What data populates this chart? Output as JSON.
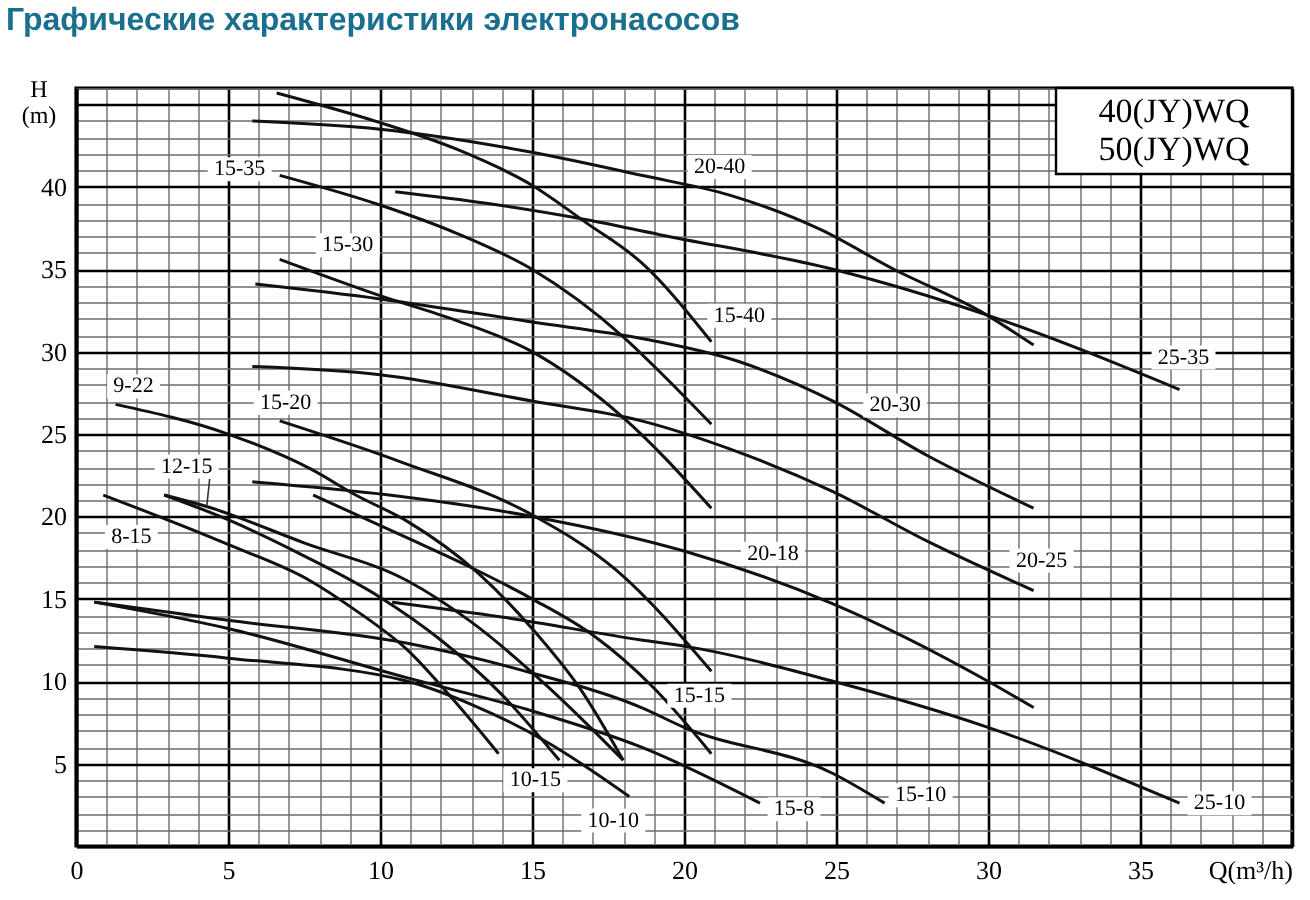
{
  "chart_data": {
    "type": "line",
    "title": "Графические характеристики электронасосов",
    "xlabel": "Q(m³/h)",
    "ylabel": "H\n(m)",
    "annotations": [
      "40(JY)WQ",
      "50(JY)WQ"
    ],
    "xlim": [
      0,
      40
    ],
    "ylim": [
      0,
      46
    ],
    "xticks": [
      0,
      {
        "value": 1,
        "label": null
      },
      {
        "value": 2,
        "label": null
      },
      {
        "value": 3,
        "label": null
      },
      {
        "value": 4,
        "label": null
      },
      5,
      {
        "value": 6,
        "label": null
      },
      {
        "value": 7,
        "label": null
      },
      {
        "value": 8,
        "label": null
      },
      {
        "value": 9,
        "label": null
      },
      10,
      {
        "value": 11,
        "label": null
      },
      {
        "value": 12,
        "label": null
      },
      {
        "value": 13,
        "label": null
      },
      {
        "value": 14,
        "label": null
      },
      15,
      {
        "value": 16,
        "label": null
      },
      {
        "value": 17,
        "label": null
      },
      {
        "value": 18,
        "label": null
      },
      {
        "value": 19,
        "label": null
      },
      20,
      {
        "value": 21,
        "label": null
      },
      {
        "value": 22,
        "label": null
      },
      {
        "value": 23,
        "label": null
      },
      {
        "value": 24,
        "label": null
      },
      25,
      {
        "value": 26,
        "label": null
      },
      {
        "value": 27,
        "label": null
      },
      {
        "value": 28,
        "label": null
      },
      {
        "value": 29,
        "label": null
      },
      30,
      {
        "value": 31,
        "label": null
      },
      {
        "value": 32,
        "label": null
      },
      {
        "value": 33,
        "label": null
      },
      {
        "value": 34,
        "label": null
      },
      35,
      {
        "value": 36,
        "label": null
      },
      {
        "value": 37,
        "label": null
      },
      {
        "value": 38,
        "label": null
      },
      {
        "value": 39,
        "label": null
      },
      {
        "value": 40,
        "label": null
      }
    ],
    "yticks": [
      {
        "value": 0,
        "label": null
      },
      {
        "value": 1,
        "label": null
      },
      {
        "value": 2,
        "label": null
      },
      {
        "value": 3,
        "label": null
      },
      {
        "value": 4,
        "label": null
      },
      5,
      {
        "value": 6,
        "label": null
      },
      {
        "value": 7,
        "label": null
      },
      {
        "value": 8,
        "label": null
      },
      {
        "value": 9,
        "label": null
      },
      10,
      {
        "value": 11,
        "label": null
      },
      {
        "value": 12,
        "label": null
      },
      {
        "value": 13,
        "label": null
      },
      {
        "value": 14,
        "label": null
      },
      15,
      {
        "value": 16,
        "label": null
      },
      {
        "value": 17,
        "label": null
      },
      {
        "value": 18,
        "label": null
      },
      {
        "value": 19,
        "label": null
      },
      20,
      {
        "value": 21,
        "label": null
      },
      {
        "value": 22,
        "label": null
      },
      {
        "value": 23,
        "label": null
      },
      {
        "value": 24,
        "label": null
      },
      25,
      {
        "value": 26,
        "label": null
      },
      {
        "value": 27,
        "label": null
      },
      {
        "value": 28,
        "label": null
      },
      {
        "value": 29,
        "label": null
      },
      30,
      {
        "value": 31,
        "label": null
      },
      {
        "value": 32,
        "label": null
      },
      {
        "value": 33,
        "label": null
      },
      {
        "value": 34,
        "label": null
      },
      35,
      {
        "value": 36,
        "label": null
      },
      {
        "value": 37,
        "label": null
      },
      {
        "value": 38,
        "label": null
      },
      {
        "value": 39,
        "label": null
      },
      40,
      {
        "value": 41,
        "label": null
      },
      {
        "value": 42,
        "label": null
      },
      {
        "value": 43,
        "label": null
      },
      {
        "value": 44,
        "label": null
      },
      {
        "value": 45,
        "label": null
      },
      {
        "value": 46,
        "label": null
      }
    ],
    "grid": true,
    "series": [
      {
        "name": "20-40",
        "color": "#111111",
        "x": [
          5.8,
          10,
          15,
          18.6,
          21.5,
          24.5,
          26.9,
          29.8,
          31.5
        ],
        "values": [
          44.0,
          43.5,
          42.1,
          40.7,
          39.5,
          37.4,
          35.0,
          32.4,
          30.4
        ]
      },
      {
        "name": "15-40",
        "color": "#111111",
        "x": [
          6.6,
          10,
          12.5,
          15,
          16.8,
          18.6,
          20.9
        ],
        "values": [
          45.7,
          43.9,
          42.3,
          40.1,
          37.8,
          35.4,
          30.6
        ]
      },
      {
        "name": "25-35",
        "color": "#111111",
        "x": [
          10.5,
          13.5,
          16.8,
          19.2,
          24.9,
          30,
          36.3
        ],
        "values": [
          39.7,
          39.0,
          38.0,
          37.1,
          35.0,
          32.2,
          27.7
        ]
      },
      {
        "name": "15-35",
        "color": "#111111",
        "x": [
          6.7,
          10,
          12.5,
          15,
          18.0,
          19.3,
          20.9
        ],
        "values": [
          40.7,
          38.9,
          37.2,
          35.0,
          30.9,
          28.6,
          25.6
        ]
      },
      {
        "name": "15-30",
        "color": "#111111",
        "x": [
          6.7,
          10,
          12.5,
          15,
          18.0,
          20.9
        ],
        "values": [
          35.6,
          33.4,
          31.9,
          30.0,
          26.0,
          20.5
        ]
      },
      {
        "name": "20-30",
        "color": "#111111",
        "x": [
          5.9,
          10,
          15,
          18.6,
          21.8,
          24.9,
          28,
          31.5
        ],
        "values": [
          34.1,
          33.2,
          31.8,
          30.8,
          29.4,
          27.0,
          23.7,
          20.5
        ]
      },
      {
        "name": "20-25",
        "color": "#111111",
        "x": [
          5.8,
          10,
          15,
          18.6,
          21.5,
          24.9,
          28,
          31.5
        ],
        "values": [
          29.1,
          28.6,
          27.0,
          25.8,
          24.1,
          21.5,
          18.5,
          15.5
        ]
      },
      {
        "name": "15-20",
        "color": "#111111",
        "x": [
          6.7,
          10.7,
          15,
          17.8,
          20.9
        ],
        "values": [
          25.8,
          23.3,
          20.1,
          16.7,
          10.6
        ]
      },
      {
        "name": "9-22",
        "color": "#111111",
        "x": [
          1.3,
          5.0,
          7.7,
          9.2,
          10.9,
          13.2,
          15,
          16.6,
          18.0
        ],
        "values": [
          26.8,
          25.0,
          22.9,
          21.3,
          19.7,
          16.6,
          13.2,
          9.5,
          5.2
        ]
      },
      {
        "name": "20-18",
        "color": "#111111",
        "x": [
          5.8,
          10.3,
          15,
          20,
          24.9,
          30,
          31.5
        ],
        "values": [
          22.1,
          21.3,
          20.0,
          17.9,
          14.7,
          10.0,
          8.4
        ]
      },
      {
        "name": "12-15",
        "color": "#111111",
        "x": [
          2.9,
          4.3,
          7.5,
          10.9,
          13,
          15.5,
          18.0
        ],
        "values": [
          21.3,
          20.6,
          18.4,
          16.1,
          13.6,
          9.7,
          5.2
        ]
      },
      {
        "name": "8-15",
        "color": "#111111",
        "x": [
          0.9,
          5.0,
          7.7,
          9.2,
          10.9,
          12.4,
          13.9
        ],
        "values": [
          21.3,
          18.3,
          16.1,
          14.3,
          11.9,
          8.9,
          5.6
        ]
      },
      {
        "name": "10-15",
        "color": "#111111",
        "x": [
          2.9,
          5,
          7.4,
          10,
          12,
          14,
          15.9
        ],
        "values": [
          21.3,
          19.8,
          17.7,
          15.1,
          12.5,
          9.2,
          5.2
        ]
      },
      {
        "name": "15-15",
        "color": "#111111",
        "x": [
          7.8,
          10.9,
          13,
          15,
          17,
          19,
          20.9
        ],
        "values": [
          21.3,
          18.7,
          16.9,
          15.0,
          12.8,
          9.6,
          5.6
        ]
      },
      {
        "name": "25-10",
        "color": "#111111",
        "x": [
          10.4,
          14,
          18.6,
          20.1,
          24.9,
          30,
          36.3
        ],
        "values": [
          14.8,
          13.9,
          12.5,
          12.1,
          10.0,
          7.2,
          2.6
        ]
      },
      {
        "name": "15-10",
        "color": "#111111",
        "x": [
          0.6,
          5,
          10.9,
          15,
          18.6,
          20,
          24.9,
          26.6
        ],
        "values": [
          14.8,
          13.7,
          12.3,
          10.5,
          8.4,
          7.2,
          4.4,
          2.6
        ]
      },
      {
        "name": "15-8",
        "color": "#111111",
        "x": [
          0.6,
          5,
          10.9,
          15,
          18.6,
          22.5
        ],
        "values": [
          14.8,
          13.2,
          10.2,
          8.2,
          6.0,
          2.6
        ]
      },
      {
        "name": "10-10",
        "color": "#111111",
        "x": [
          0.6,
          5,
          10.9,
          13,
          15.5,
          18.2
        ],
        "values": [
          12.1,
          11.4,
          10.0,
          8.6,
          6.3,
          3.0
        ]
      }
    ]
  }
}
